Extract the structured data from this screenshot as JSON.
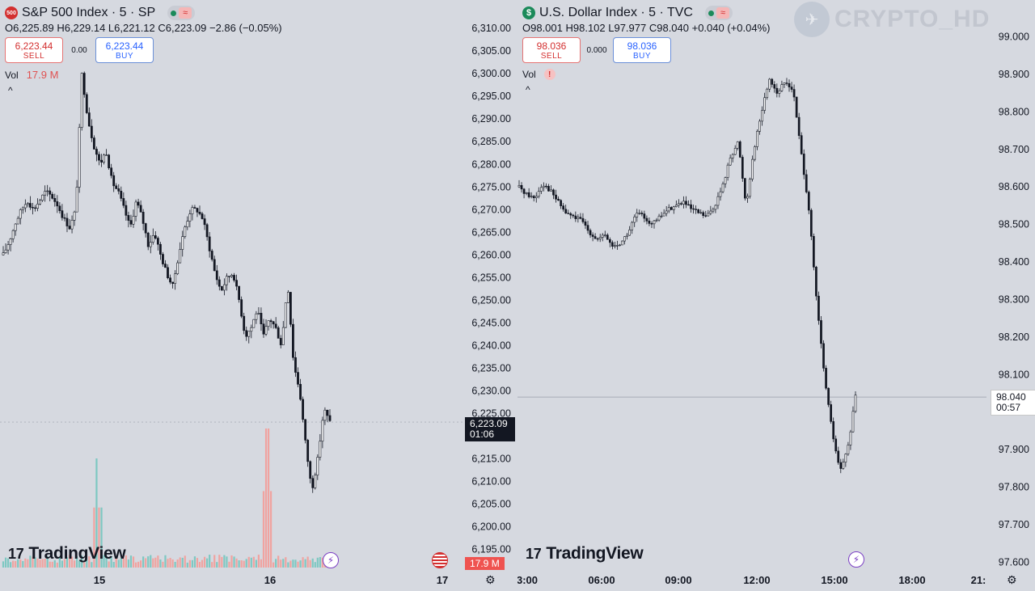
{
  "left": {
    "symbol_badge": "500",
    "title": "S&P 500 Index · 5 · SP",
    "ohlc": "O6,225.89  H6,229.14  L6,221.12  C6,223.09  −2.86 (−0.05%)",
    "sell_price": "6,223.44",
    "sell_label": "SELL",
    "spread": "0.00",
    "buy_price": "6,223.44",
    "buy_label": "BUY",
    "vol_label": "Vol",
    "vol_value": "17.9 M",
    "collapse": "^",
    "brand": "TradingView",
    "price_tag": "6,223.09",
    "countdown": "01:06",
    "vol_tag": "17.9 M",
    "colors": {
      "up_vol": "#7ec8c2",
      "down_vol": "#f0a3a0",
      "candle": "#131722"
    }
  },
  "right": {
    "symbol_badge": "$",
    "title": "U.S. Dollar Index · 5 · TVC",
    "ohlc": "O98.001  H98.102  L97.977  C98.040  +0.040 (+0.04%)",
    "sell_price": "98.036",
    "sell_label": "SELL",
    "spread": "0.000",
    "buy_price": "98.036",
    "buy_label": "BUY",
    "vol_label": "Vol",
    "collapse": "^",
    "brand": "TradingView",
    "price_tag": "98.040",
    "countdown": "00:57",
    "watermark": "CRYPTO_HD"
  },
  "chart_data": [
    {
      "type": "candlestick",
      "title": "S&P 500 Index · 5 · SP",
      "y_ticks": [
        "6,310.00",
        "6,305.00",
        "6,300.00",
        "6,295.00",
        "6,290.00",
        "6,285.00",
        "6,280.00",
        "6,275.00",
        "6,270.00",
        "6,265.00",
        "6,260.00",
        "6,255.00",
        "6,250.00",
        "6,245.00",
        "6,240.00",
        "6,235.00",
        "6,230.00",
        "6,225.00",
        "6,220.00",
        "6,215.00",
        "6,210.00",
        "6,205.00",
        "6,200.00",
        "6,195.00"
      ],
      "y_tick_values": [
        6310,
        6305,
        6300,
        6295,
        6290,
        6285,
        6280,
        6275,
        6270,
        6265,
        6260,
        6255,
        6250,
        6245,
        6240,
        6235,
        6230,
        6225,
        6220,
        6215,
        6210,
        6205,
        6200,
        6195
      ],
      "x_ticks": [
        "15",
        "16",
        "17"
      ],
      "ylim": [
        6194,
        6312
      ],
      "last_price": 6223.09,
      "close_path": [
        6260,
        6263,
        6267,
        6270,
        6272,
        6270,
        6272,
        6274,
        6273,
        6271,
        6268,
        6266,
        6270,
        6300,
        6290,
        6284,
        6280,
        6283,
        6276,
        6274,
        6270,
        6266,
        6272,
        6268,
        6262,
        6265,
        6260,
        6256,
        6253,
        6260,
        6266,
        6270,
        6270,
        6268,
        6262,
        6256,
        6252,
        6255,
        6256,
        6250,
        6242,
        6244,
        6248,
        6242,
        6246,
        6244,
        6240,
        6254,
        6236,
        6230,
        6218,
        6208,
        6215,
        6226,
        6223.09
      ],
      "volume_spikes": [
        {
          "x": "15",
          "value": "high"
        },
        {
          "x": "16",
          "value": "high"
        }
      ]
    },
    {
      "type": "candlestick",
      "title": "U.S. Dollar Index · 5 · TVC",
      "y_ticks": [
        "99.000",
        "98.900",
        "98.800",
        "98.700",
        "98.600",
        "98.500",
        "98.400",
        "98.300",
        "98.200",
        "98.100",
        "98.000",
        "97.900",
        "97.800",
        "97.700",
        "97.600"
      ],
      "y_tick_values": [
        99.0,
        98.9,
        98.8,
        98.7,
        98.6,
        98.5,
        98.4,
        98.3,
        98.2,
        98.1,
        98.0,
        97.9,
        97.8,
        97.7,
        97.6
      ],
      "x_ticks": [
        "3:00",
        "06:00",
        "09:00",
        "12:00",
        "15:00",
        "18:00",
        "21:"
      ],
      "ylim": [
        97.59,
        99.04
      ],
      "last_price": 98.04,
      "close_path": [
        98.6,
        98.58,
        98.57,
        98.61,
        98.59,
        98.56,
        98.53,
        98.52,
        98.51,
        98.48,
        98.46,
        98.47,
        98.44,
        98.45,
        98.48,
        98.53,
        98.52,
        98.5,
        98.52,
        98.54,
        98.55,
        98.56,
        98.54,
        98.53,
        98.52,
        98.55,
        98.6,
        98.68,
        98.72,
        98.55,
        98.7,
        98.8,
        98.89,
        98.85,
        98.88,
        98.86,
        98.7,
        98.55,
        98.3,
        98.1,
        97.95,
        97.84,
        97.9,
        98.04
      ]
    }
  ]
}
